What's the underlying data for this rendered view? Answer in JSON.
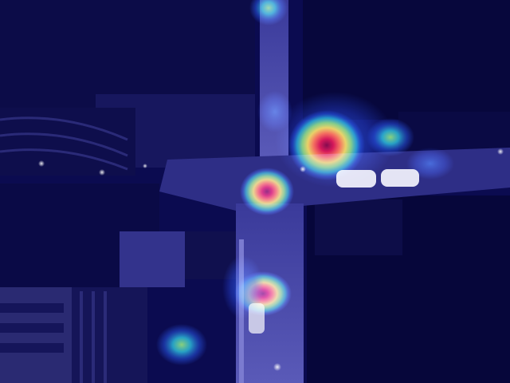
{
  "image": {
    "kind": "aerial-night-street-heatmap-overlay",
    "colormap": [
      "#0a0a5a",
      "#1f4fe0",
      "#27d0e0",
      "#9cf24a",
      "#ffe21a",
      "#ff6a12",
      "#d41010",
      "#7f0000"
    ],
    "base_tint": "#0b0b50"
  }
}
